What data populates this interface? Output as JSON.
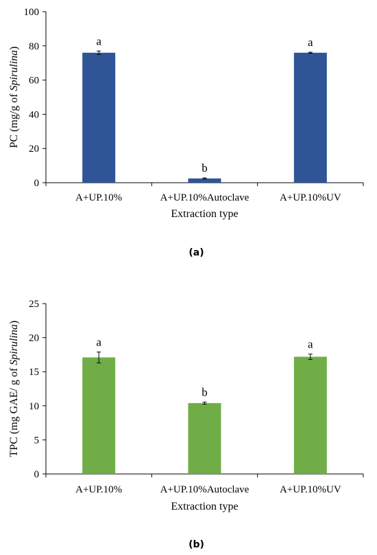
{
  "chart_data": [
    {
      "type": "bar",
      "panel_label": "(a)",
      "categories": [
        "A+UP.10%",
        "A+UP.10%Autoclave",
        "A+UP.10%UV"
      ],
      "values": [
        76,
        2.5,
        76
      ],
      "errors": [
        1.0,
        0.3,
        0.3
      ],
      "significance": [
        "a",
        "b",
        "a"
      ],
      "xlabel": "Extraction type",
      "ylabel_prefix": "PC (mg/g of ",
      "ylabel_italic": "Spirulina",
      "ylabel_suffix": ")",
      "ylim": [
        0,
        100
      ],
      "yticks": [
        0,
        20,
        40,
        60,
        80,
        100
      ],
      "bar_color": "#2f5597",
      "grid": false,
      "legend": "none"
    },
    {
      "type": "bar",
      "panel_label": "(b)",
      "categories": [
        "A+UP.10%",
        "A+UP.10%Autoclave",
        "A+UP.10%UV"
      ],
      "values": [
        17.1,
        10.4,
        17.2
      ],
      "errors": [
        0.8,
        0.15,
        0.4
      ],
      "significance": [
        "a",
        "b",
        "a"
      ],
      "xlabel": "Extraction type",
      "ylabel_prefix": "TPC (mg GAE/ g of ",
      "ylabel_italic": "Spirulina",
      "ylabel_suffix": ")",
      "ylim": [
        0,
        25
      ],
      "yticks": [
        0,
        5,
        10,
        15,
        20,
        25
      ],
      "bar_color": "#70ad47",
      "grid": false,
      "legend": "none"
    }
  ]
}
